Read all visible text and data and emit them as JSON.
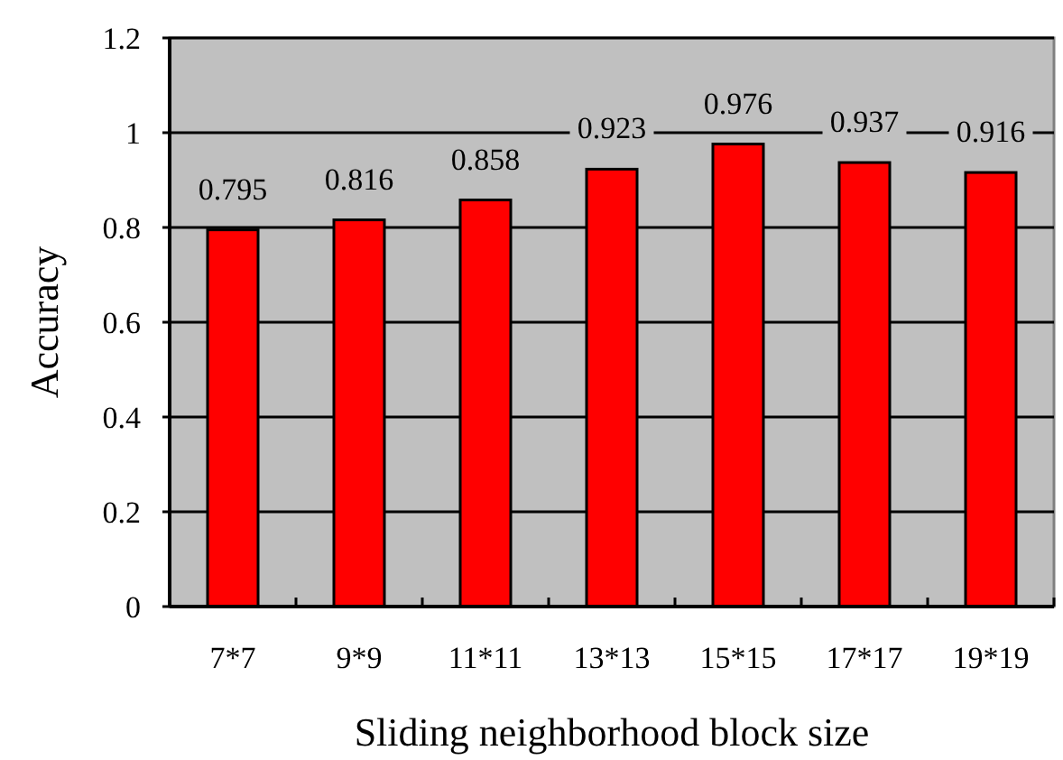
{
  "chart_data": {
    "type": "bar",
    "xlabel": "Sliding neighborhood block size",
    "ylabel": "Accuracy",
    "categories": [
      "7*7",
      "9*9",
      "11*11",
      "13*13",
      "15*15",
      "17*17",
      "19*19"
    ],
    "values": [
      0.795,
      0.816,
      0.858,
      0.923,
      0.976,
      0.937,
      0.916
    ],
    "color": "#ff0000",
    "ylim": [
      0,
      1.2
    ],
    "yticks": [
      0,
      0.2,
      0.4,
      0.6,
      0.8,
      1,
      1.2
    ],
    "grid": "y",
    "data_labels": true
  }
}
